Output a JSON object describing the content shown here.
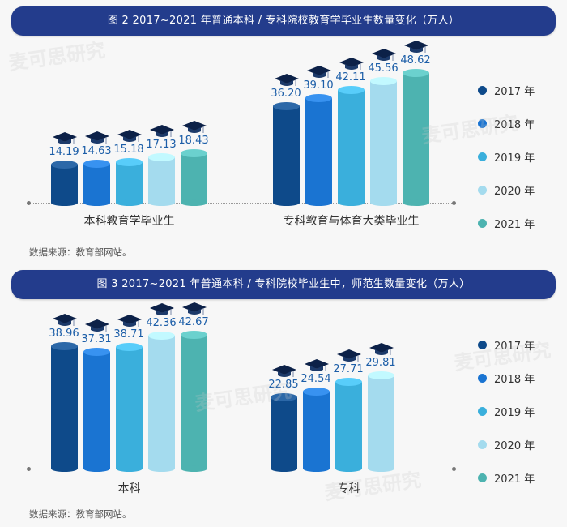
{
  "figures": [
    {
      "title": "图 2  2017~2021 年普通本科 / 专科院校教育学毕业生数量变化（万人）",
      "source": "数据来源：教育部网站。",
      "groups": [
        {
          "label": "本科教育学毕业生",
          "values": [
            "14.19",
            "14.63",
            "15.18",
            "17.13",
            "18.43"
          ]
        },
        {
          "label": "专科教育与体育大类毕业生",
          "values": [
            "36.20",
            "39.10",
            "42.11",
            "45.56",
            "48.62"
          ]
        }
      ]
    },
    {
      "title": "图 3  2017~2021 年普通本科 / 专科院校毕业生中，师范生数量变化（万人）",
      "source": "数据来源：教育部网站。",
      "groups": [
        {
          "label": "本科",
          "values": [
            "38.96",
            "37.31",
            "38.71",
            "42.36",
            "42.67"
          ]
        },
        {
          "label": "专科",
          "values": [
            "22.85",
            "24.54",
            "27.71",
            "29.81"
          ]
        }
      ]
    }
  ],
  "legend": [
    "2017 年",
    "2018 年",
    "2019 年",
    "2020 年",
    "2021 年"
  ],
  "colors": [
    "#0e4a8a",
    "#1a74d2",
    "#3aafdc",
    "#a4dbee",
    "#4db3b0"
  ],
  "watermark": "麦可思研究",
  "chart_data": [
    {
      "type": "bar",
      "title": "图 2 2017~2021 年普通本科 / 专科院校教育学毕业生数量变化（万人）",
      "categories": [
        "本科教育学毕业生",
        "专科教育与体育大类毕业生"
      ],
      "series": [
        {
          "name": "2017 年",
          "values": [
            14.19,
            36.2
          ]
        },
        {
          "name": "2018 年",
          "values": [
            14.63,
            39.1
          ]
        },
        {
          "name": "2019 年",
          "values": [
            15.18,
            42.11
          ]
        },
        {
          "name": "2020 年",
          "values": [
            17.13,
            45.56
          ]
        },
        {
          "name": "2021 年",
          "values": [
            18.43,
            48.62
          ]
        }
      ],
      "xlabel": "",
      "ylabel": "万人",
      "legend_position": "right",
      "grid": false,
      "annotations": [
        "数据来源：教育部网站。"
      ]
    },
    {
      "type": "bar",
      "title": "图 3 2017~2021 年普通本科 / 专科院校毕业生中，师范生数量变化（万人）",
      "categories": [
        "本科",
        "专科"
      ],
      "series": [
        {
          "name": "2017 年",
          "values": [
            38.96,
            22.85
          ]
        },
        {
          "name": "2018 年",
          "values": [
            37.31,
            24.54
          ]
        },
        {
          "name": "2019 年",
          "values": [
            38.71,
            27.71
          ]
        },
        {
          "name": "2020 年",
          "values": [
            42.36,
            29.81
          ]
        },
        {
          "name": "2021 年",
          "values": [
            42.67,
            null
          ]
        }
      ],
      "xlabel": "",
      "ylabel": "万人",
      "legend_position": "right",
      "grid": false,
      "annotations": [
        "数据来源：教育部网站。"
      ]
    }
  ]
}
